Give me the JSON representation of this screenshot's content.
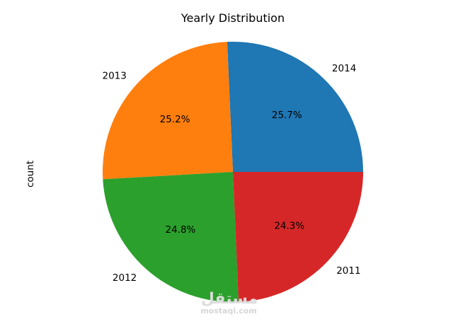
{
  "chart_data": {
    "type": "pie",
    "title": "Yearly Distribution",
    "ylabel": "count",
    "slices": [
      {
        "label": "2014",
        "pct_label": "25.7%",
        "value": 25.7,
        "color": "#1f77b4"
      },
      {
        "label": "2013",
        "pct_label": "25.2%",
        "value": 25.2,
        "color": "#ff7f0e"
      },
      {
        "label": "2012",
        "pct_label": "24.8%",
        "value": 24.8,
        "color": "#2ca02c"
      },
      {
        "label": "2011",
        "pct_label": "24.3%",
        "value": 24.3,
        "color": "#d62728"
      }
    ],
    "start_angle_deg": 0,
    "direction": "counterclockwise"
  },
  "watermark": {
    "arabic": "مستقل",
    "latin": "mostaqi.com"
  }
}
